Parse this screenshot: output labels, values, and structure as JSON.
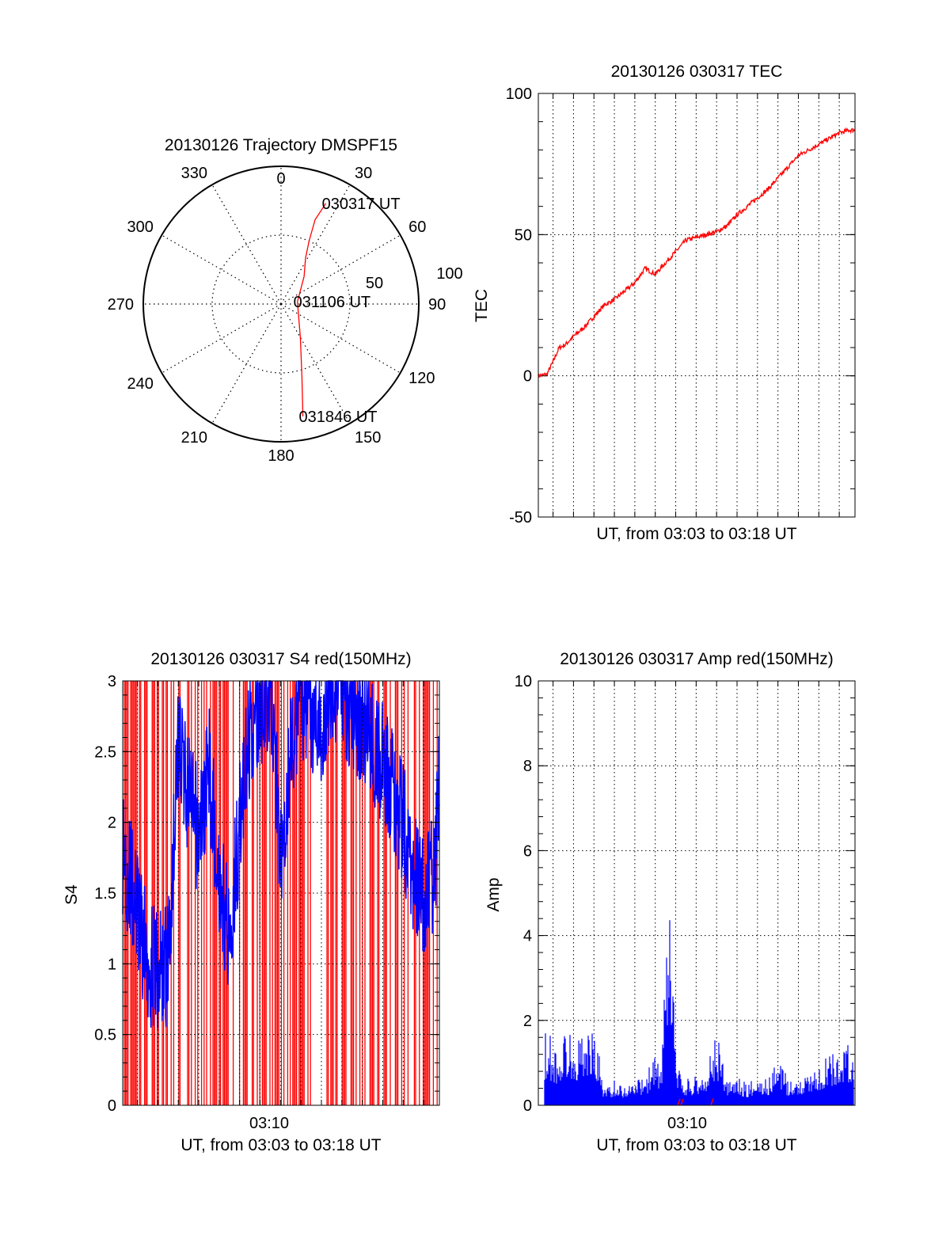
{
  "colors": {
    "red": "#ff0000",
    "blue": "#0000ff",
    "axis": "#000000",
    "grid": "#000000"
  },
  "chart_data": [
    {
      "id": "trajectory",
      "type": "polar",
      "title": "20130126 Trajectory DMSPF15",
      "angle_labels": [
        "0",
        "30",
        "60",
        "90",
        "120",
        "150",
        "180",
        "210",
        "240",
        "270",
        "300",
        "330"
      ],
      "radial_labels": [
        "50",
        "100"
      ],
      "grid": true,
      "series": [
        {
          "color": "#ff0000",
          "points": [
            {
              "az": 24,
              "r": 80
            },
            {
              "az": 22,
              "r": 66
            },
            {
              "az": 24,
              "r": 50
            },
            {
              "az": 28,
              "r": 38
            },
            {
              "az": 40,
              "r": 26
            },
            {
              "az": 82,
              "r": 12
            },
            {
              "az": 150,
              "r": 28
            },
            {
              "az": 164,
              "r": 55
            },
            {
              "az": 169,
              "r": 83
            }
          ]
        }
      ],
      "annotations": [
        {
          "text": "030317 UT",
          "az": 24,
          "r": 80
        },
        {
          "text": "031106 UT",
          "az": 82,
          "r": 12
        },
        {
          "text": "031846 UT",
          "az": 169,
          "r": 83
        }
      ]
    },
    {
      "id": "tec",
      "type": "line",
      "title": "20130126 030317 TEC",
      "ylabel": "TEC",
      "xlabel": "UT, from 03:03 to 03:18 UT",
      "xtick_labels": [],
      "ylim": [
        -50,
        100
      ],
      "yticks": [
        -50,
        0,
        50,
        100
      ],
      "xlim_minutes": [
        3.28,
        18.77
      ],
      "grid": true,
      "series": [
        {
          "color": "#ff0000",
          "t_minutes": [
            3.28,
            3.7,
            4.0,
            4.3,
            4.6,
            5.0,
            5.5,
            6.0,
            6.5,
            7.0,
            7.5,
            8.0,
            8.5,
            9.0,
            9.5,
            10.0,
            10.5,
            11.0,
            11.5,
            12.0,
            12.5,
            13.0,
            13.5,
            14.0,
            14.5,
            15.0,
            15.5,
            16.0,
            16.5,
            17.0,
            17.5,
            18.0,
            18.5,
            18.77
          ],
          "values": [
            0,
            0.5,
            5,
            10,
            11,
            14,
            17,
            21,
            25,
            27,
            30,
            33,
            38,
            36,
            40,
            44,
            48,
            49,
            50,
            51,
            53,
            57,
            60,
            63,
            66,
            70,
            74,
            78,
            80,
            82,
            84,
            86,
            87,
            87
          ]
        }
      ]
    },
    {
      "id": "s4",
      "type": "line",
      "title": "20130126 030317 S4 red(150MHz)",
      "ylabel": "S4",
      "xlabel": "UT, from 03:03 to 03:18 UT",
      "xtick_labels": [
        "03:10"
      ],
      "ylim": [
        0,
        3
      ],
      "yticks": [
        0,
        0.5,
        1,
        1.5,
        2,
        2.5,
        3
      ],
      "yticklabels": [
        "0",
        "0.5",
        "1",
        "1.5",
        "2",
        "2.5",
        "3"
      ],
      "xlim_minutes": [
        3.28,
        18.77
      ],
      "grid": true,
      "series": [
        {
          "color": "#0000ff",
          "t_minutes": [
            3.3,
            3.8,
            4.2,
            4.6,
            5.0,
            5.5,
            6.0,
            6.5,
            7.0,
            7.5,
            8.0,
            8.5,
            9.0,
            9.5,
            10.0,
            10.5,
            11.0,
            11.5,
            12.0,
            12.5,
            13.0,
            13.5,
            14.0,
            14.5,
            15.0,
            15.5,
            16.0,
            16.5,
            17.0,
            17.5,
            18.0,
            18.5,
            18.77
          ],
          "values": [
            1.8,
            1.5,
            1.2,
            1.0,
            0.95,
            1.0,
            2.6,
            2.2,
            1.9,
            2.4,
            1.6,
            1.2,
            2.0,
            2.6,
            2.8,
            3.0,
            1.8,
            2.5,
            2.9,
            2.8,
            2.7,
            3.0,
            2.9,
            2.8,
            2.7,
            2.6,
            2.4,
            2.2,
            2.0,
            1.6,
            1.5,
            1.6,
            2.3
          ]
        }
      ],
      "red_spikes_to": 3
    },
    {
      "id": "amp",
      "type": "line",
      "title": "20130126 030317 Amp red(150MHz)",
      "ylabel": "Amp",
      "xlabel": "UT, from 03:03 to 03:18 UT",
      "xtick_labels": [
        "03:10"
      ],
      "ylim": [
        0,
        10
      ],
      "yticks": [
        0,
        2,
        4,
        6,
        8,
        10
      ],
      "xlim_minutes": [
        3.28,
        18.77
      ],
      "grid": true,
      "series": [
        {
          "color": "#0000ff",
          "t_minutes": [
            3.3,
            3.7,
            4.2,
            4.7,
            5.2,
            5.7,
            6.2,
            6.5,
            7.0,
            7.5,
            8.0,
            8.5,
            9.0,
            9.3,
            9.5,
            9.8,
            10.0,
            10.3,
            11.0,
            11.5,
            12.0,
            12.5,
            13.0,
            13.5,
            14.0,
            14.5,
            15.0,
            15.5,
            16.0,
            16.5,
            17.0,
            17.5,
            18.0,
            18.5,
            18.77
          ],
          "values": [
            1.5,
            1.8,
            1.4,
            1.9,
            1.6,
            2.0,
            1.5,
            0.4,
            0.6,
            0.5,
            0.7,
            0.6,
            1.4,
            0.8,
            3.5,
            5.1,
            1.2,
            0.6,
            0.7,
            0.9,
            1.8,
            0.6,
            0.7,
            0.5,
            0.8,
            0.6,
            1.2,
            0.6,
            0.7,
            0.8,
            1.0,
            1.2,
            1.4,
            1.5,
            0.9
          ]
        }
      ]
    }
  ]
}
